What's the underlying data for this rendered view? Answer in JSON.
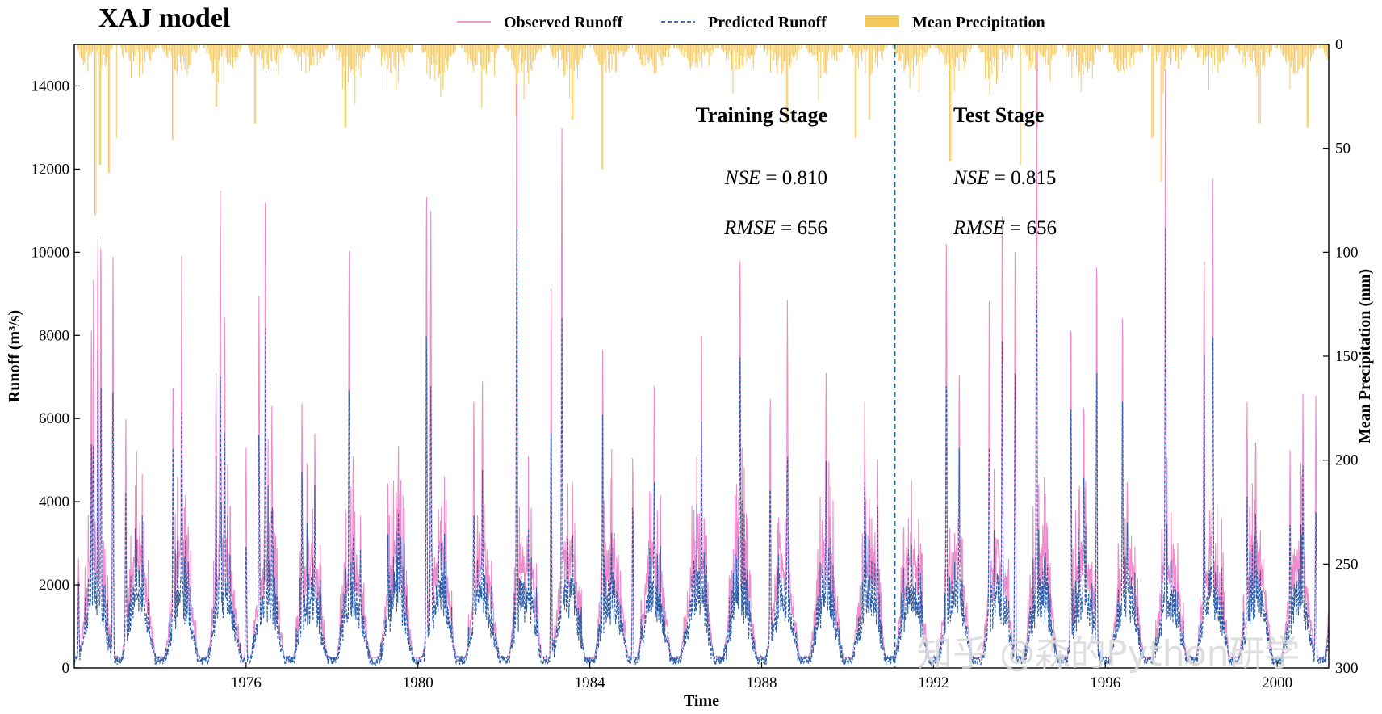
{
  "chart_data": {
    "type": "line",
    "title": "XAJ model",
    "xlabel": "Time",
    "ylabel": "Runoff (m³/s)",
    "y2label": "Mean Precipitation (mm)",
    "xlim": [
      1972.0,
      2001.2
    ],
    "ylim": [
      0,
      15000
    ],
    "y2lim": [
      300,
      0
    ],
    "grid": false,
    "legend_position": "top",
    "x_ticks": [
      1976,
      1980,
      1984,
      1988,
      1992,
      1996,
      2000
    ],
    "y_ticks": [
      0,
      2000,
      4000,
      6000,
      8000,
      10000,
      12000,
      14000
    ],
    "y2_ticks": [
      0,
      50,
      100,
      150,
      200,
      250,
      300
    ],
    "split_year": 1991.1,
    "peaks": [
      [
        1972.1,
        2700
      ],
      [
        1972.4,
        8300
      ],
      [
        1972.45,
        9800
      ],
      [
        1972.55,
        10500
      ],
      [
        1972.62,
        10500
      ],
      [
        1972.9,
        9900
      ],
      [
        1973.2,
        6000
      ],
      [
        1974.3,
        7100
      ],
      [
        1974.5,
        9950
      ],
      [
        1975.3,
        7200
      ],
      [
        1975.4,
        11500
      ],
      [
        1975.5,
        8750
      ],
      [
        1976.0,
        5300
      ],
      [
        1976.3,
        8950
      ],
      [
        1976.45,
        11800
      ],
      [
        1976.6,
        6300
      ],
      [
        1977.3,
        6450
      ],
      [
        1977.6,
        5700
      ],
      [
        1978.4,
        10100
      ],
      [
        1979.3,
        4500
      ],
      [
        1979.6,
        4600
      ],
      [
        1980.2,
        11600
      ],
      [
        1980.3,
        11000
      ],
      [
        1981.3,
        6500
      ],
      [
        1981.5,
        6900
      ],
      [
        1982.3,
        14850
      ],
      [
        1983.1,
        9150
      ],
      [
        1983.35,
        13000
      ],
      [
        1984.3,
        7650
      ],
      [
        1985.0,
        5150
      ],
      [
        1985.5,
        6800
      ],
      [
        1986.6,
        8450
      ],
      [
        1987.5,
        10200
      ],
      [
        1988.2,
        6600
      ],
      [
        1988.6,
        8850
      ],
      [
        1989.5,
        7100
      ],
      [
        1990.4,
        6450
      ],
      [
        1990.7,
        5050
      ],
      [
        1992.3,
        10200
      ],
      [
        1992.6,
        7050
      ],
      [
        1993.3,
        9000
      ],
      [
        1993.6,
        11050
      ],
      [
        1993.9,
        10150
      ],
      [
        1994.4,
        14900
      ],
      [
        1995.2,
        8550
      ],
      [
        1995.5,
        6550
      ],
      [
        1995.8,
        10050
      ],
      [
        1996.4,
        8700
      ],
      [
        1997.4,
        14850
      ],
      [
        1998.3,
        10200
      ],
      [
        1998.5,
        11900
      ],
      [
        1999.3,
        6450
      ],
      [
        1999.5,
        5700
      ],
      [
        2000.3,
        5250
      ],
      [
        2000.6,
        6600
      ],
      [
        2000.9,
        6550
      ]
    ],
    "prcp_spikes": [
      [
        1972.5,
        82
      ],
      [
        1972.6,
        58
      ],
      [
        1972.8,
        62
      ],
      [
        1973.0,
        45
      ],
      [
        1974.3,
        46
      ],
      [
        1975.3,
        30
      ],
      [
        1976.2,
        38
      ],
      [
        1978.3,
        40
      ],
      [
        1982.3,
        35
      ],
      [
        1983.0,
        52
      ],
      [
        1983.6,
        36
      ],
      [
        1984.3,
        60
      ],
      [
        1988.6,
        38
      ],
      [
        1990.2,
        45
      ],
      [
        1990.5,
        36
      ],
      [
        1992.4,
        56
      ],
      [
        1994.0,
        58
      ],
      [
        1994.4,
        40
      ],
      [
        1997.1,
        45
      ],
      [
        1997.3,
        66
      ],
      [
        1999.6,
        38
      ],
      [
        2000.7,
        40
      ]
    ],
    "series": [
      {
        "name": "Observed Runoff",
        "color": "#f08ccb",
        "style": "solid"
      },
      {
        "name": "Predicted Runoff",
        "color": "#2f5fa8",
        "style": "dashed"
      },
      {
        "name": "Mean Precipitation",
        "color": "#f5c85c",
        "style": "bar"
      }
    ],
    "annotations": {
      "training": {
        "label": "Training Stage",
        "nse": "0.810",
        "rmse": "656"
      },
      "test": {
        "label": "Test Stage",
        "nse": "0.815",
        "rmse": "656"
      }
    }
  },
  "watermark": "知乎 @森的Python研学"
}
